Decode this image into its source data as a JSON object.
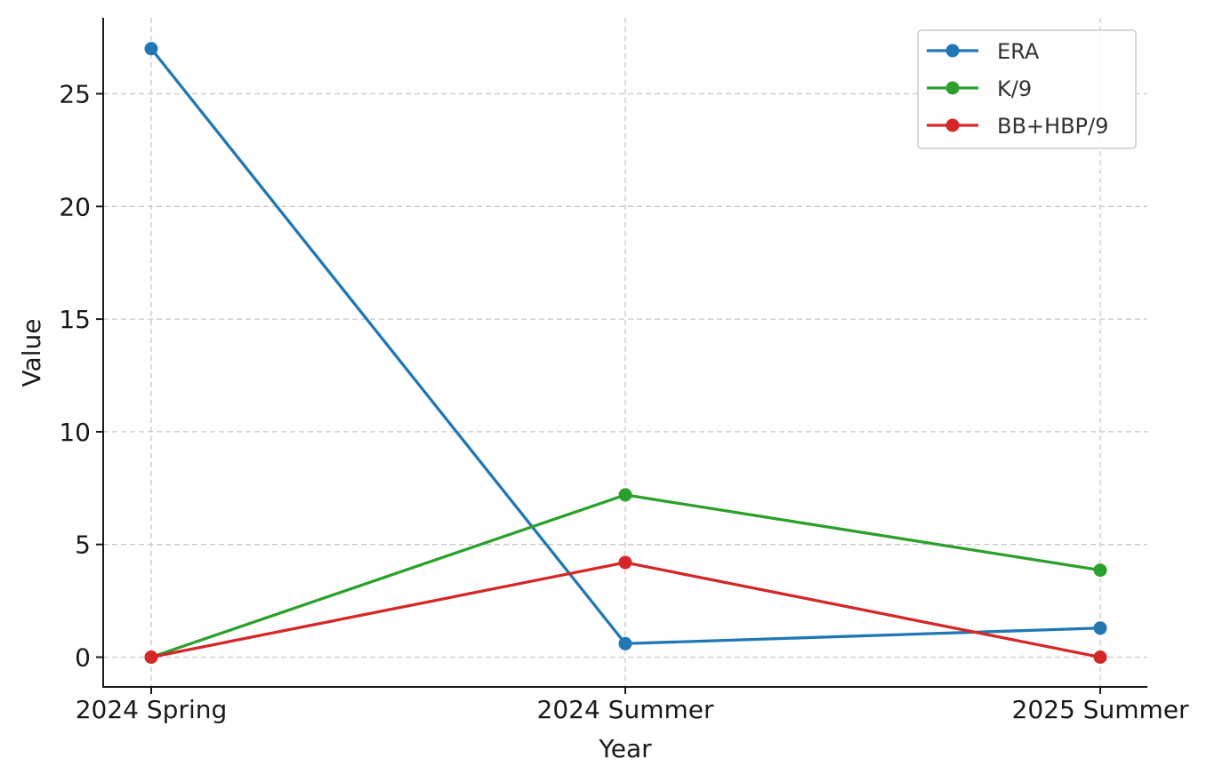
{
  "chart_data": {
    "type": "line",
    "title": "",
    "xlabel": "Year",
    "ylabel": "Value",
    "categories": [
      "2024 Spring",
      "2024 Summer",
      "2025 Summer"
    ],
    "ylim": [
      -1.3,
      28.4
    ],
    "yticks": [
      0,
      5,
      10,
      15,
      20,
      25
    ],
    "grid": true,
    "legend_position": "top-right",
    "series": [
      {
        "name": "ERA",
        "color": "#1f77b4",
        "values": [
          27.0,
          0.6,
          1.29
        ]
      },
      {
        "name": "K/9",
        "color": "#2ca02c",
        "values": [
          0.0,
          7.2,
          3.86
        ]
      },
      {
        "name": "BB+HBP/9",
        "color": "#d62728",
        "values": [
          0.0,
          4.2,
          0.0
        ]
      }
    ]
  }
}
